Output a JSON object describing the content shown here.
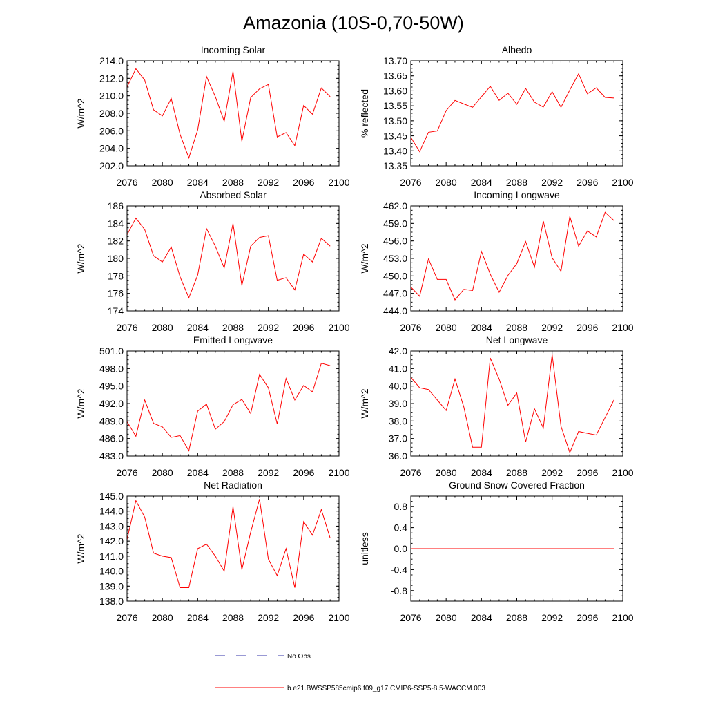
{
  "figure": {
    "title": "Amazonia (10S-0,70-50W)",
    "colors": {
      "model_line": "#ff0000",
      "obs_line": "#3333aa",
      "axes": "#000000"
    }
  },
  "legend": {
    "obs_label": "No Obs",
    "model_label": "b.e21.BWSSP585cmip6.f09_g17.CMIP6-SSP5-8.5-WACCM.003"
  },
  "chart_data": [
    {
      "type": "line",
      "title": "Incoming Solar",
      "ylabel": "W/m^2",
      "xlim": [
        2076,
        2100
      ],
      "ylim": [
        202.0,
        214.0
      ],
      "xticks": [
        2076,
        2080,
        2084,
        2088,
        2092,
        2096,
        2100
      ],
      "xtick_labels": [
        "2076",
        "2080",
        "2084",
        "2088",
        "2092",
        "2096",
        "2100"
      ],
      "yticks": [
        202,
        204,
        206,
        208,
        210,
        212,
        214
      ],
      "ytick_labels": [
        "202.0",
        "204.0",
        "206.0",
        "208.0",
        "210.0",
        "212.0",
        "214.0"
      ],
      "series": [
        {
          "name": "b.e21.BWSSP585cmip6.f09_g17.CMIP6-SSP5-8.5-WACCM.003",
          "x": [
            2076,
            2077,
            2078,
            2079,
            2080,
            2081,
            2082,
            2083,
            2084,
            2085,
            2086,
            2087,
            2088,
            2089,
            2090,
            2091,
            2092,
            2093,
            2094,
            2095,
            2096,
            2097,
            2098,
            2099
          ],
          "values": [
            211.0,
            213.1,
            211.8,
            208.4,
            207.7,
            209.7,
            205.6,
            202.9,
            206.1,
            212.2,
            209.9,
            207.1,
            212.8,
            204.8,
            209.8,
            210.8,
            211.3,
            205.3,
            205.8,
            204.3,
            208.9,
            207.9,
            210.9,
            209.9
          ]
        }
      ]
    },
    {
      "type": "line",
      "title": "Albedo",
      "ylabel": "% reflected",
      "xlim": [
        2076,
        2100
      ],
      "ylim": [
        13.35,
        13.7
      ],
      "xticks": [
        2076,
        2080,
        2084,
        2088,
        2092,
        2096,
        2100
      ],
      "xtick_labels": [
        "2076",
        "2080",
        "2084",
        "2088",
        "2092",
        "2096",
        "2100"
      ],
      "yticks": [
        13.35,
        13.4,
        13.45,
        13.5,
        13.55,
        13.6,
        13.65,
        13.7
      ],
      "ytick_labels": [
        "13.35",
        "13.40",
        "13.45",
        "13.50",
        "13.55",
        "13.60",
        "13.65",
        "13.70"
      ],
      "series": [
        {
          "name": "b.e21.BWSSP585cmip6.f09_g17.CMIP6-SSP5-8.5-WACCM.003",
          "x": [
            2076,
            2077,
            2078,
            2079,
            2080,
            2081,
            2082,
            2083,
            2084,
            2085,
            2086,
            2087,
            2088,
            2089,
            2090,
            2091,
            2092,
            2093,
            2094,
            2095,
            2096,
            2097,
            2098,
            2099
          ],
          "values": [
            13.445,
            13.397,
            13.462,
            13.466,
            13.534,
            13.568,
            13.556,
            13.545,
            13.58,
            13.615,
            13.568,
            13.592,
            13.555,
            13.608,
            13.562,
            13.546,
            13.597,
            13.545,
            13.603,
            13.657,
            13.59,
            13.61,
            13.578,
            13.576
          ]
        }
      ]
    },
    {
      "type": "line",
      "title": "Absorbed Solar",
      "ylabel": "W/m^2",
      "xlim": [
        2076,
        2100
      ],
      "ylim": [
        174,
        186
      ],
      "xticks": [
        2076,
        2080,
        2084,
        2088,
        2092,
        2096,
        2100
      ],
      "xtick_labels": [
        "2076",
        "2080",
        "2084",
        "2088",
        "2092",
        "2096",
        "2100"
      ],
      "yticks": [
        174,
        176,
        178,
        180,
        182,
        184,
        186
      ],
      "ytick_labels": [
        "174",
        "176",
        "178",
        "180",
        "182",
        "184",
        "186"
      ],
      "series": [
        {
          "name": "b.e21.BWSSP585cmip6.f09_g17.CMIP6-SSP5-8.5-WACCM.003",
          "x": [
            2076,
            2077,
            2078,
            2079,
            2080,
            2081,
            2082,
            2083,
            2084,
            2085,
            2086,
            2087,
            2088,
            2089,
            2090,
            2091,
            2092,
            2093,
            2094,
            2095,
            2096,
            2097,
            2098,
            2099
          ],
          "values": [
            182.7,
            184.6,
            183.3,
            180.3,
            179.6,
            181.3,
            177.9,
            175.5,
            178.1,
            183.4,
            181.4,
            178.9,
            184.0,
            176.9,
            181.4,
            182.4,
            182.6,
            177.5,
            177.8,
            176.4,
            180.5,
            179.6,
            182.3,
            181.4
          ]
        }
      ]
    },
    {
      "type": "line",
      "title": "Incoming Longwave",
      "ylabel": "W/m^2",
      "xlim": [
        2076,
        2100
      ],
      "ylim": [
        444.0,
        462.0
      ],
      "xticks": [
        2076,
        2080,
        2084,
        2088,
        2092,
        2096,
        2100
      ],
      "xtick_labels": [
        "2076",
        "2080",
        "2084",
        "2088",
        "2092",
        "2096",
        "2100"
      ],
      "yticks": [
        444,
        447,
        450,
        453,
        456,
        459,
        462
      ],
      "ytick_labels": [
        "444.0",
        "447.0",
        "450.0",
        "453.0",
        "456.0",
        "459.0",
        "462.0"
      ],
      "series": [
        {
          "name": "b.e21.BWSSP585cmip6.f09_g17.CMIP6-SSP5-8.5-WACCM.003",
          "x": [
            2076,
            2077,
            2078,
            2079,
            2080,
            2081,
            2082,
            2083,
            2084,
            2085,
            2086,
            2087,
            2088,
            2089,
            2090,
            2091,
            2092,
            2093,
            2094,
            2095,
            2096,
            2097,
            2098,
            2099
          ],
          "values": [
            448.1,
            446.5,
            452.9,
            449.4,
            449.4,
            445.9,
            447.7,
            447.5,
            454.2,
            450.3,
            447.2,
            450.1,
            452.1,
            455.9,
            451.5,
            459.4,
            453.1,
            450.8,
            460.2,
            455.1,
            457.7,
            456.7,
            460.9,
            459.5
          ]
        }
      ]
    },
    {
      "type": "line",
      "title": "Emitted Longwave",
      "ylabel": "W/m^2",
      "xlim": [
        2076,
        2100
      ],
      "ylim": [
        483.0,
        501.0
      ],
      "xticks": [
        2076,
        2080,
        2084,
        2088,
        2092,
        2096,
        2100
      ],
      "xtick_labels": [
        "2076",
        "2080",
        "2084",
        "2088",
        "2092",
        "2096",
        "2100"
      ],
      "yticks": [
        483,
        486,
        489,
        492,
        495,
        498,
        501
      ],
      "ytick_labels": [
        "483.0",
        "486.0",
        "489.0",
        "492.0",
        "495.0",
        "498.0",
        "501.0"
      ],
      "series": [
        {
          "name": "b.e21.BWSSP585cmip6.f09_g17.CMIP6-SSP5-8.5-WACCM.003",
          "x": [
            2076,
            2077,
            2078,
            2079,
            2080,
            2081,
            2082,
            2083,
            2084,
            2085,
            2086,
            2087,
            2088,
            2089,
            2090,
            2091,
            2092,
            2093,
            2094,
            2095,
            2096,
            2097,
            2098,
            2099
          ],
          "values": [
            488.9,
            486.4,
            492.6,
            488.6,
            488.0,
            486.2,
            486.5,
            483.9,
            490.7,
            491.9,
            487.6,
            488.9,
            491.8,
            492.7,
            490.3,
            497.0,
            494.7,
            488.5,
            496.3,
            492.6,
            495.1,
            494.0,
            498.9,
            498.5
          ]
        }
      ]
    },
    {
      "type": "line",
      "title": "Net Longwave",
      "ylabel": "W/m^2",
      "xlim": [
        2076,
        2100
      ],
      "ylim": [
        36.0,
        42.0
      ],
      "xticks": [
        2076,
        2080,
        2084,
        2088,
        2092,
        2096,
        2100
      ],
      "xtick_labels": [
        "2076",
        "2080",
        "2084",
        "2088",
        "2092",
        "2096",
        "2100"
      ],
      "yticks": [
        36,
        37,
        38,
        39,
        40,
        41,
        42
      ],
      "ytick_labels": [
        "36.0",
        "37.0",
        "38.0",
        "39.0",
        "40.0",
        "41.0",
        "42.0"
      ],
      "series": [
        {
          "name": "b.e21.BWSSP585cmip6.f09_g17.CMIP6-SSP5-8.5-WACCM.003",
          "x": [
            2076,
            2077,
            2078,
            2079,
            2080,
            2081,
            2082,
            2083,
            2084,
            2085,
            2086,
            2087,
            2088,
            2089,
            2090,
            2091,
            2092,
            2093,
            2094,
            2095,
            2096,
            2097,
            2098,
            2099
          ],
          "values": [
            40.5,
            39.9,
            39.8,
            39.2,
            38.6,
            40.4,
            38.8,
            36.5,
            36.5,
            41.6,
            40.4,
            38.9,
            39.6,
            36.8,
            38.7,
            37.6,
            41.8,
            37.7,
            36.2,
            37.4,
            37.3,
            37.2,
            38.2,
            39.2
          ]
        }
      ]
    },
    {
      "type": "line",
      "title": "Net Radiation",
      "ylabel": "W/m^2",
      "xlim": [
        2076,
        2100
      ],
      "ylim": [
        138.0,
        145.0
      ],
      "xticks": [
        2076,
        2080,
        2084,
        2088,
        2092,
        2096,
        2100
      ],
      "xtick_labels": [
        "2076",
        "2080",
        "2084",
        "2088",
        "2092",
        "2096",
        "2100"
      ],
      "yticks": [
        138,
        139,
        140,
        141,
        142,
        143,
        144,
        145
      ],
      "ytick_labels": [
        "138.0",
        "139.0",
        "140.0",
        "141.0",
        "142.0",
        "143.0",
        "144.0",
        "145.0"
      ],
      "series": [
        {
          "name": "b.e21.BWSSP585cmip6.f09_g17.CMIP6-SSP5-8.5-WACCM.003",
          "x": [
            2076,
            2077,
            2078,
            2079,
            2080,
            2081,
            2082,
            2083,
            2084,
            2085,
            2086,
            2087,
            2088,
            2089,
            2090,
            2091,
            2092,
            2093,
            2094,
            2095,
            2096,
            2097,
            2098,
            2099
          ],
          "values": [
            142.1,
            144.7,
            143.6,
            141.2,
            141.0,
            140.9,
            138.9,
            138.9,
            141.5,
            141.8,
            141.0,
            140.0,
            144.3,
            140.1,
            142.6,
            144.8,
            140.8,
            139.7,
            141.5,
            138.9,
            143.3,
            142.4,
            144.1,
            142.2
          ]
        }
      ]
    },
    {
      "type": "line",
      "title": "Ground Snow Covered Fraction",
      "ylabel": "unitless",
      "xlim": [
        2076,
        2100
      ],
      "ylim": [
        -1.0,
        1.0
      ],
      "xticks": [
        2076,
        2080,
        2084,
        2088,
        2092,
        2096,
        2100
      ],
      "xtick_labels": [
        "2076",
        "2080",
        "2084",
        "2088",
        "2092",
        "2096",
        "2100"
      ],
      "yticks": [
        -0.8,
        -0.4,
        0.0,
        0.4,
        0.8
      ],
      "ytick_labels": [
        "-0.8",
        "-0.4",
        "0.0",
        "0.4",
        "0.8"
      ],
      "series": [
        {
          "name": "b.e21.BWSSP585cmip6.f09_g17.CMIP6-SSP5-8.5-WACCM.003",
          "x": [
            2076,
            2077,
            2078,
            2079,
            2080,
            2081,
            2082,
            2083,
            2084,
            2085,
            2086,
            2087,
            2088,
            2089,
            2090,
            2091,
            2092,
            2093,
            2094,
            2095,
            2096,
            2097,
            2098,
            2099
          ],
          "values": [
            0,
            0,
            0,
            0,
            0,
            0,
            0,
            0,
            0,
            0,
            0,
            0,
            0,
            0,
            0,
            0,
            0,
            0,
            0,
            0,
            0,
            0,
            0,
            0
          ]
        }
      ]
    }
  ]
}
